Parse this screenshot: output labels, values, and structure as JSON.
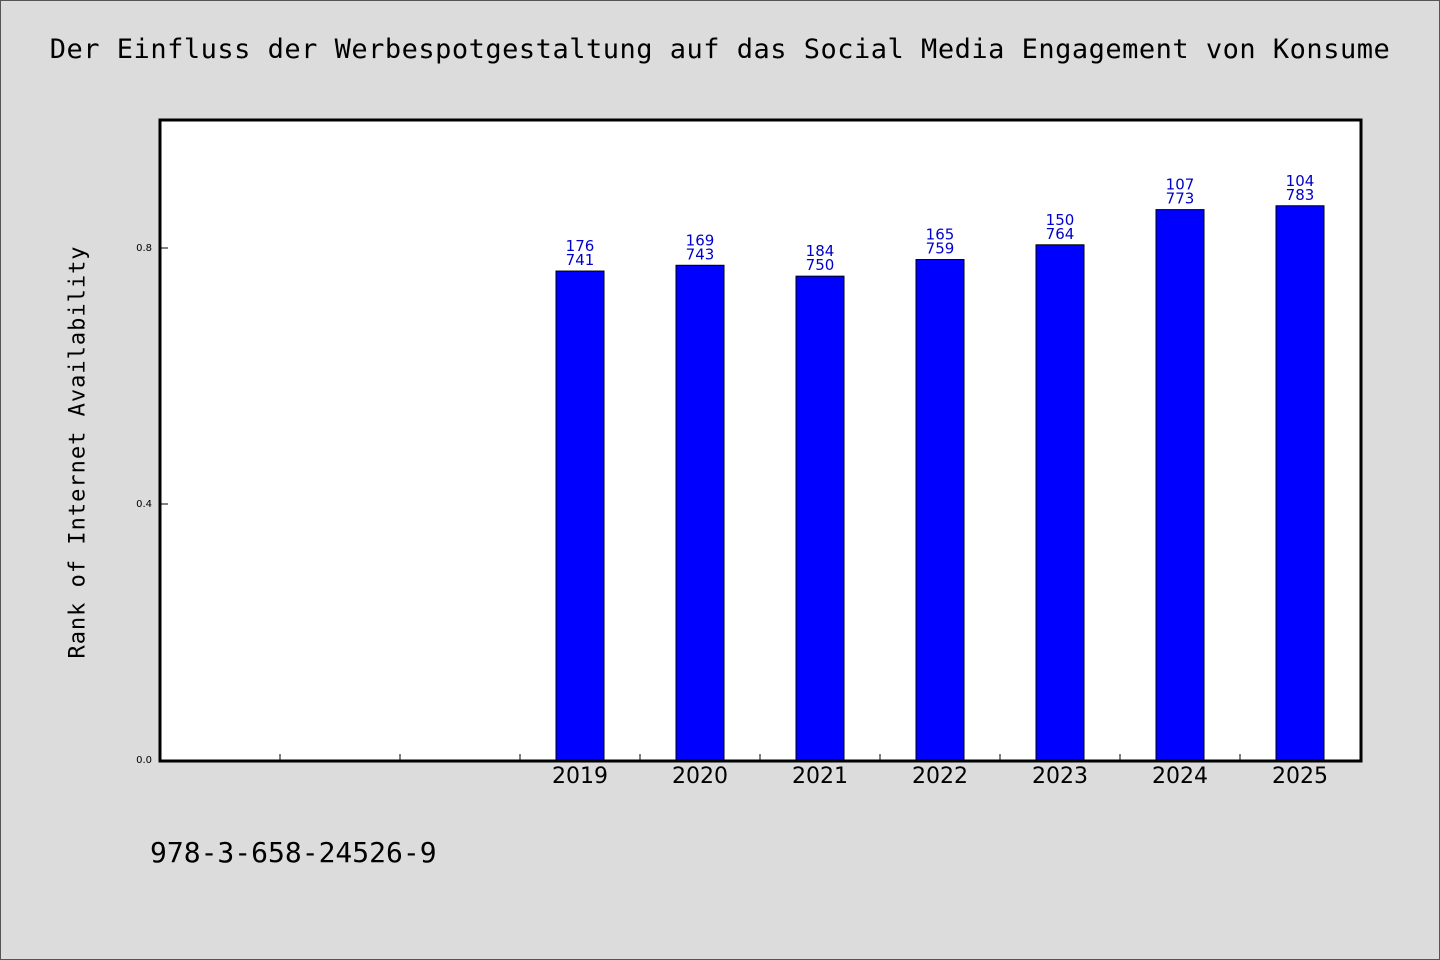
{
  "chart_data": {
    "type": "bar",
    "title": "Der Einfluss der Werbespotgestaltung auf das Social Media Engagement von Konsume",
    "xlabel": "",
    "ylabel": "Rank of Internet Availability",
    "ylim": [
      0,
      1.0
    ],
    "yticks": [
      "0.0",
      "0.4",
      "0.8"
    ],
    "categories": [
      "",
      "",
      "",
      "2019",
      "2020",
      "2021",
      "2022",
      "2023",
      "2024",
      "2025"
    ],
    "values": [
      null,
      null,
      null,
      0.764,
      0.773,
      0.756,
      0.782,
      0.805,
      0.86,
      0.866
    ],
    "data_labels": [
      null,
      null,
      null,
      [
        "176",
        "741"
      ],
      [
        "169",
        "743"
      ],
      [
        "184",
        "750"
      ],
      [
        "165",
        "759"
      ],
      [
        "150",
        "764"
      ],
      [
        "107",
        "773"
      ],
      [
        "104",
        "783"
      ]
    ],
    "bar_color": "#0000ff",
    "label_color": "#0000cc",
    "grid": false,
    "legend": "none"
  },
  "footnote": "978-3-658-24526-9"
}
